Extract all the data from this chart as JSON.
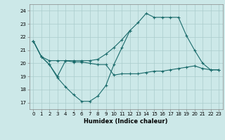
{
  "xlabel": "Humidex (Indice chaleur)",
  "background_color": "#cce8e8",
  "grid_color": "#aacccc",
  "line_color": "#1a6b6b",
  "xlim": [
    -0.5,
    23.5
  ],
  "ylim": [
    16.5,
    24.5
  ],
  "yticks": [
    17,
    18,
    19,
    20,
    21,
    22,
    23,
    24
  ],
  "xticks": [
    0,
    1,
    2,
    3,
    4,
    5,
    6,
    7,
    8,
    9,
    10,
    11,
    12,
    13,
    14,
    15,
    16,
    17,
    18,
    19,
    20,
    21,
    22,
    23
  ],
  "line1_x": [
    0,
    1,
    2,
    3,
    4,
    5,
    6,
    7,
    8,
    9,
    10,
    11,
    12
  ],
  "line1_y": [
    21.7,
    20.5,
    19.9,
    18.9,
    18.2,
    17.6,
    17.1,
    17.1,
    17.5,
    18.3,
    19.9,
    21.2,
    22.5
  ],
  "line2_x": [
    0,
    1,
    2,
    3,
    4,
    5,
    6,
    7,
    8,
    9,
    10,
    11,
    12,
    13,
    14,
    15,
    16,
    17,
    18,
    19,
    20,
    21,
    22,
    23
  ],
  "line2_y": [
    21.7,
    20.5,
    19.9,
    19.0,
    20.2,
    20.1,
    20.1,
    20.0,
    19.9,
    19.9,
    19.1,
    19.2,
    19.2,
    19.2,
    19.3,
    19.4,
    19.4,
    19.5,
    19.6,
    19.7,
    19.8,
    19.6,
    19.5,
    19.5
  ],
  "line3_x": [
    0,
    1,
    2,
    3,
    4,
    5,
    6,
    7,
    8,
    9,
    10,
    11,
    12,
    13,
    14,
    15,
    16,
    17,
    18,
    19,
    20,
    21,
    22,
    23
  ],
  "line3_y": [
    21.7,
    20.5,
    20.2,
    20.2,
    20.2,
    20.2,
    20.2,
    20.2,
    20.3,
    20.7,
    21.2,
    21.8,
    22.5,
    23.1,
    23.8,
    23.5,
    23.5,
    23.5,
    23.5,
    22.1,
    21.0,
    20.0,
    19.5,
    19.5
  ]
}
